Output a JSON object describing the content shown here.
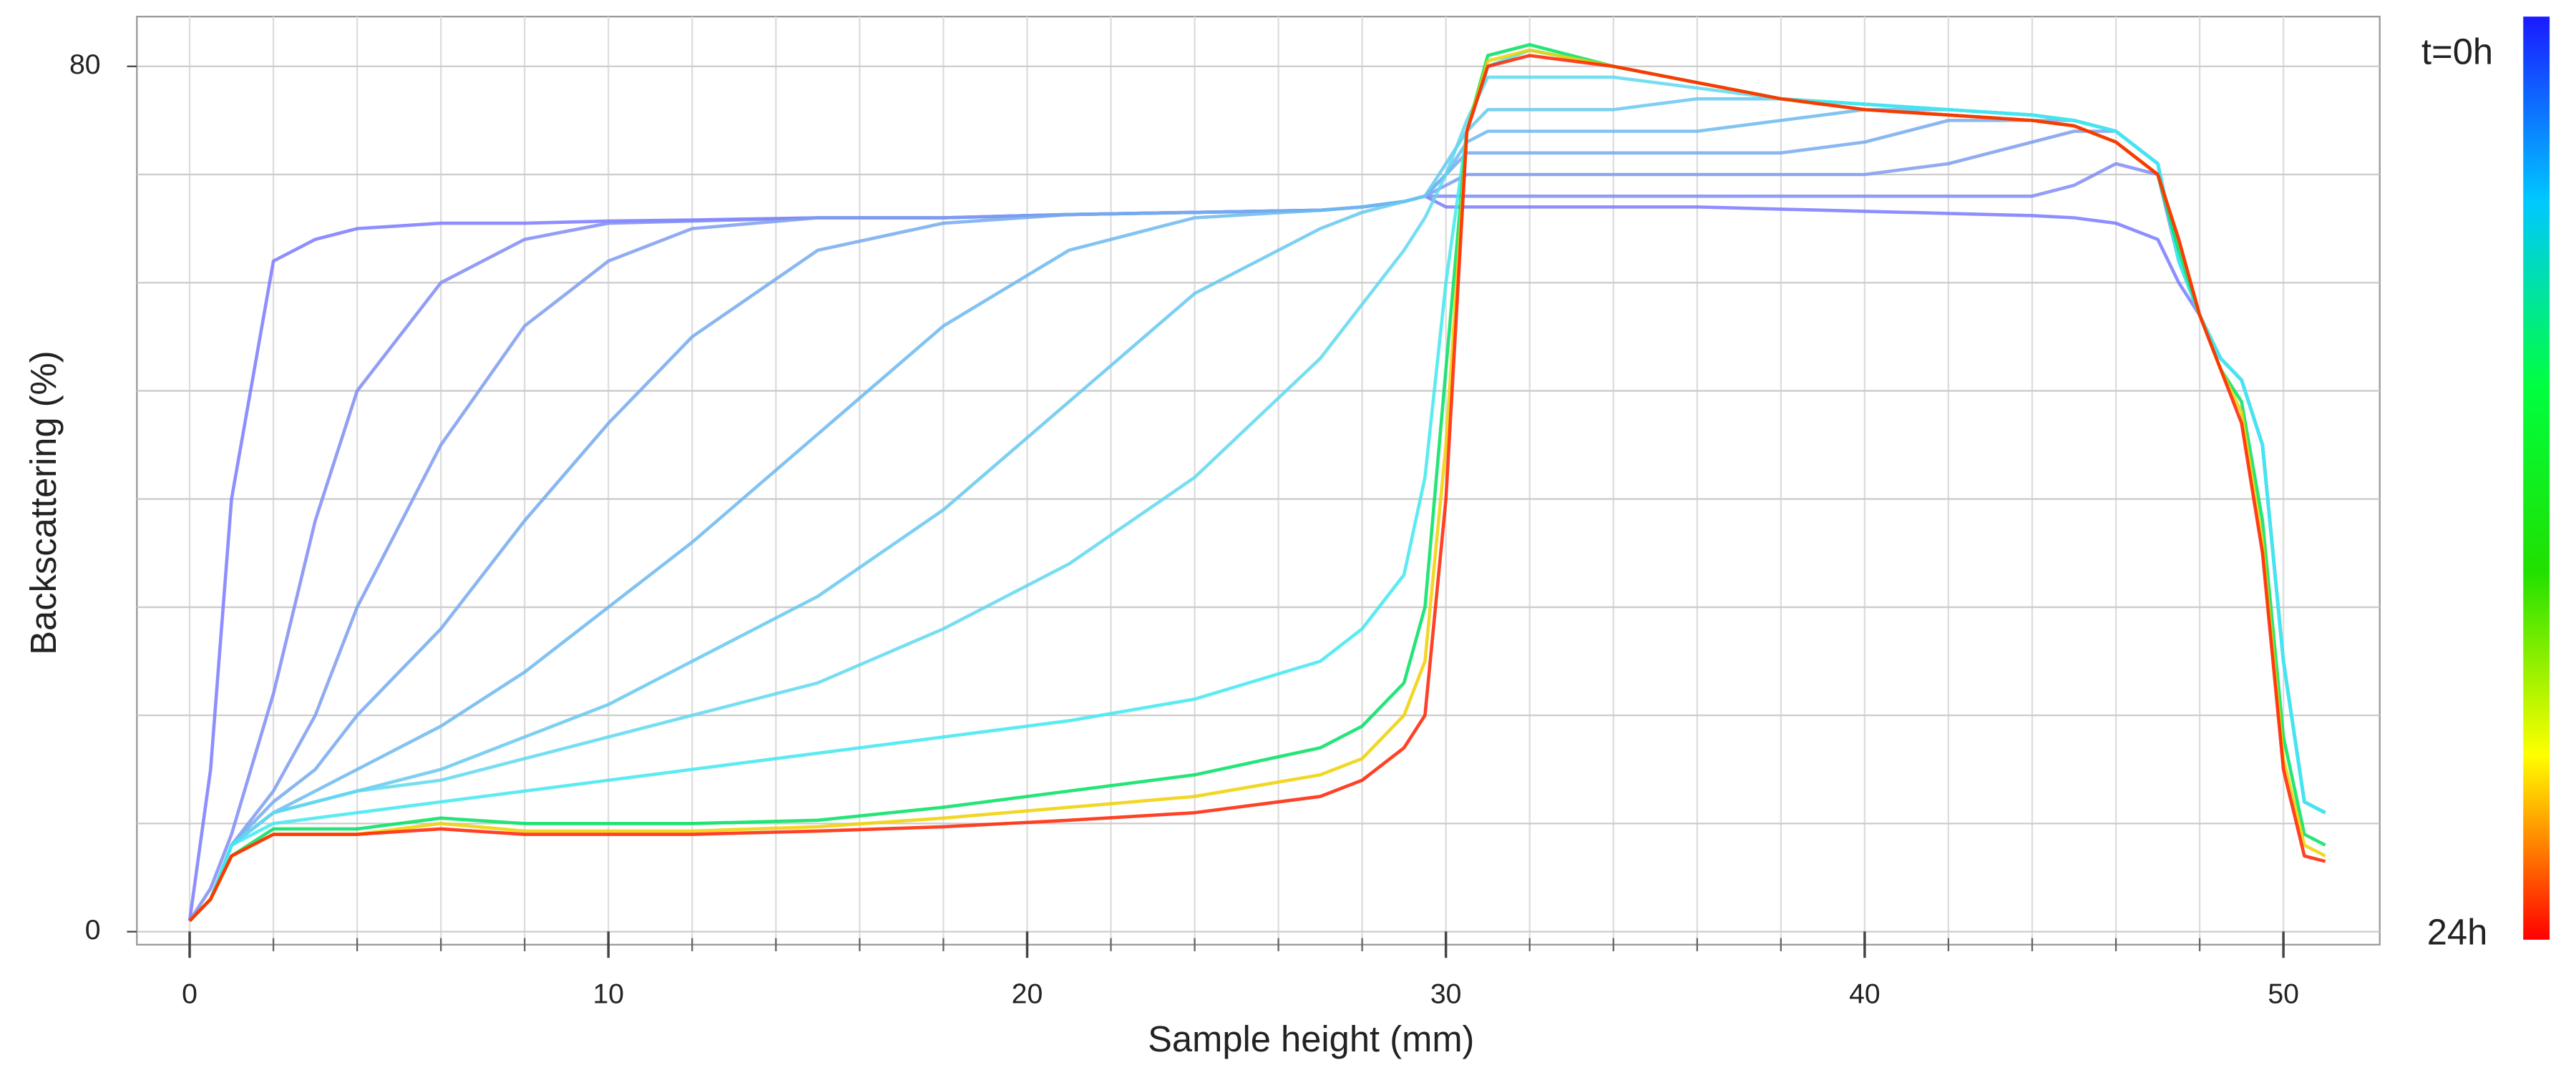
{
  "chart_data": {
    "type": "line",
    "xlabel": "Sample height (mm)",
    "ylabel": "Backscattering (%)",
    "x": [
      0,
      0.5,
      1,
      2,
      3,
      4,
      6,
      8,
      10,
      12,
      15,
      18,
      21,
      24,
      27,
      28,
      29,
      29.5,
      30,
      30.5,
      31,
      32,
      34,
      36,
      38,
      40,
      42,
      44,
      45,
      46,
      47,
      47.5,
      48,
      48.5,
      49,
      49.5,
      50,
      50.5,
      51
    ],
    "xlim": [
      -1.26,
      52.3
    ],
    "ylim": [
      -1.2,
      84.6
    ],
    "xticks": [
      0,
      10,
      20,
      30,
      40,
      50
    ],
    "yticks": [
      0,
      80
    ],
    "xgrid": [
      0,
      2,
      4,
      6,
      8,
      10,
      12,
      14,
      16,
      18,
      20,
      22,
      24,
      26,
      28,
      30,
      32,
      34,
      36,
      38,
      40,
      42,
      44,
      46,
      48,
      50
    ],
    "ygrid": [
      0,
      10,
      20,
      30,
      40,
      50,
      60,
      70,
      80
    ],
    "grid": true,
    "series": [
      {
        "color": "#7a7aff",
        "values": [
          1,
          15,
          40,
          62,
          64,
          65,
          65.5,
          65.5,
          65.7,
          65.8,
          66,
          66,
          66.3,
          66.5,
          66.7,
          67,
          67.5,
          68,
          67,
          67,
          67,
          67,
          67,
          67,
          66.8,
          66.6,
          66.4,
          66.2,
          66,
          65.5,
          64,
          60,
          57,
          53,
          51,
          45,
          25,
          12,
          11
        ]
      },
      {
        "color": "#7f8cf5",
        "values": [
          1,
          4,
          9,
          22,
          38,
          50,
          60,
          64,
          65.5,
          65.7,
          66,
          66,
          66.3,
          66.5,
          66.7,
          67,
          67.5,
          68,
          68,
          68,
          68,
          68,
          68,
          68,
          68,
          68,
          68,
          68,
          69,
          71,
          70,
          62,
          57,
          53,
          51,
          45,
          25,
          12,
          11
        ]
      },
      {
        "color": "#7e9cf0",
        "values": [
          1,
          3,
          8,
          13,
          20,
          30,
          45,
          56,
          62,
          65,
          66,
          66,
          66.3,
          66.5,
          66.7,
          67,
          67.5,
          68,
          69,
          70,
          70,
          70,
          70,
          70,
          70,
          70,
          71,
          73,
          74,
          74,
          71,
          62,
          57,
          53,
          51,
          45,
          25,
          12,
          11
        ]
      },
      {
        "color": "#74aaf0",
        "values": [
          1,
          3,
          8,
          12,
          15,
          20,
          28,
          38,
          47,
          55,
          63,
          65.5,
          66.3,
          66.5,
          66.7,
          67,
          67.5,
          68,
          70,
          72,
          72,
          72,
          72,
          72,
          72,
          73,
          75,
          75,
          75,
          74,
          71,
          62,
          57,
          53,
          51,
          45,
          25,
          12,
          11
        ]
      },
      {
        "color": "#6cb8f0",
        "values": [
          1,
          3,
          8,
          11,
          13,
          15,
          19,
          24,
          30,
          36,
          46,
          56,
          63,
          66,
          66.7,
          67,
          67.5,
          68,
          70,
          73,
          74,
          74,
          74,
          74,
          75,
          76,
          76,
          75.5,
          75,
          74,
          71,
          62,
          57,
          53,
          51,
          45,
          25,
          12,
          11
        ]
      },
      {
        "color": "#66c8f0",
        "values": [
          1,
          3,
          8,
          11,
          12,
          13,
          15,
          18,
          21,
          25,
          31,
          39,
          49,
          59,
          65,
          66.5,
          67.5,
          68,
          71,
          74,
          76,
          76,
          76,
          77,
          77,
          76.5,
          76,
          75.5,
          75,
          74,
          71,
          62,
          57,
          53,
          51,
          45,
          25,
          12,
          11
        ]
      },
      {
        "color": "#5fd8f0",
        "values": [
          1,
          3,
          8,
          11,
          12,
          13,
          14,
          16,
          18,
          20,
          23,
          28,
          34,
          42,
          53,
          58,
          63,
          66,
          70,
          75,
          79,
          79,
          79,
          78,
          77,
          76.5,
          76,
          75.5,
          75,
          74,
          71,
          62,
          57,
          53,
          51,
          45,
          25,
          12,
          11
        ]
      },
      {
        "color": "#40e8f0",
        "values": [
          1,
          3,
          8,
          10,
          10.5,
          11,
          12,
          13,
          14,
          15,
          16.5,
          18,
          19.5,
          21.5,
          25,
          28,
          33,
          42,
          60,
          74,
          80,
          81.5,
          80,
          78.5,
          77,
          76.5,
          76,
          75.5,
          75,
          74,
          71,
          62,
          57,
          53,
          51,
          45,
          25,
          12,
          11
        ]
      },
      {
        "color": "#00e060",
        "values": [
          1,
          3,
          7,
          9.5,
          9.5,
          9.5,
          10.5,
          10,
          10,
          10,
          10.3,
          11.5,
          13,
          14.5,
          17,
          19,
          23,
          30,
          52,
          74,
          81,
          82,
          80,
          78.5,
          77,
          76,
          75.5,
          75,
          74.5,
          73,
          70,
          63,
          57,
          52,
          49,
          38,
          18,
          9,
          8
        ]
      },
      {
        "color": "#f0d000",
        "values": [
          1,
          3,
          7,
          9,
          9,
          9,
          10,
          9.3,
          9.3,
          9.3,
          9.7,
          10.5,
          11.5,
          12.5,
          14.5,
          16,
          20,
          25,
          45,
          74,
          80.5,
          81.5,
          80,
          78.5,
          77,
          76,
          75.5,
          75,
          74.5,
          73,
          70,
          64,
          57,
          52,
          48,
          36,
          16,
          8,
          7
        ]
      },
      {
        "color": "#ff2000",
        "values": [
          1,
          3,
          7,
          9,
          9,
          9,
          9.5,
          9,
          9,
          9,
          9.3,
          9.7,
          10.3,
          11,
          12.5,
          14,
          17,
          20,
          40,
          74,
          80,
          81,
          80,
          78.5,
          77,
          76,
          75.5,
          75,
          74.5,
          73,
          70,
          64,
          57,
          52,
          47,
          35,
          15,
          7,
          6.5
        ]
      }
    ],
    "colorbar": {
      "top_label": "t=0h",
      "bottom_label": "24h",
      "colors": [
        "#1a1aff",
        "#00c8ff",
        "#00ff40",
        "#20e000",
        "#ffff00",
        "#ff0000"
      ]
    }
  }
}
